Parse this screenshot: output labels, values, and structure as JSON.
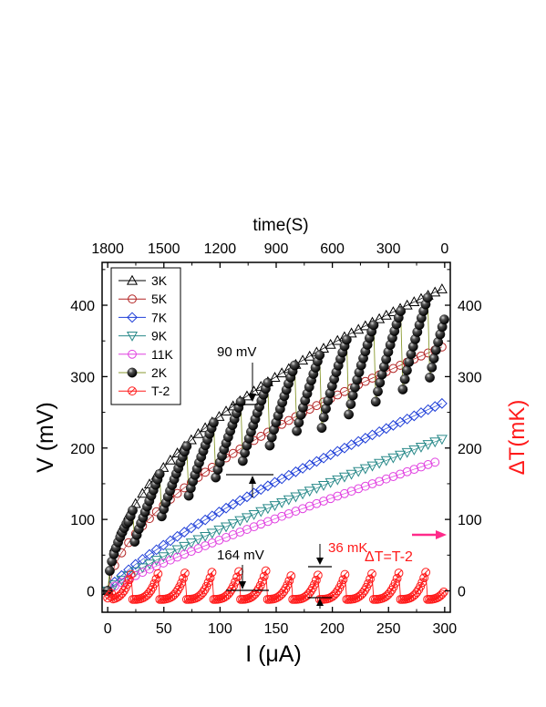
{
  "chart_data": {
    "type": "scatter",
    "xlabel": "I (μA)",
    "ylabel": "V (mV)",
    "ylabel_right": "ΔT(mK)",
    "xlabel_top": "time(S)",
    "xlim": [
      -5,
      305
    ],
    "ylim": [
      -30,
      460
    ],
    "x_ticks": [
      "0",
      "50",
      "100",
      "150",
      "200",
      "250",
      "300"
    ],
    "y_ticks": [
      "0",
      "100",
      "200",
      "300",
      "400"
    ],
    "y_ticks_right": [
      "0",
      "100",
      "200",
      "300",
      "400"
    ],
    "top_ticks": [
      "1800",
      "1500",
      "1200",
      "900",
      "600",
      "300",
      "0"
    ],
    "legend": {
      "position": "top-left",
      "entries": [
        {
          "label": "3K",
          "marker": "triangle-up",
          "color": "#000000"
        },
        {
          "label": "5K",
          "marker": "circle",
          "color": "#b22222"
        },
        {
          "label": "7K",
          "marker": "diamond",
          "color": "#1f3fd8"
        },
        {
          "label": "9K",
          "marker": "triangle-down",
          "color": "#2a8a8a"
        },
        {
          "label": "11K",
          "marker": "circle",
          "color": "#e040e0"
        },
        {
          "label": "2K",
          "marker": "filled-sphere",
          "color": "#000000"
        },
        {
          "label": "T-2",
          "marker": "circle-slash",
          "color": "#ff1a1a"
        }
      ]
    },
    "series": [
      {
        "name": "3K",
        "shape": "power",
        "a": 24.5,
        "b": 0.5,
        "x_step": 6.2,
        "x_max": 298
      },
      {
        "name": "5K",
        "shape": "power",
        "a": 12.2,
        "b": 0.585,
        "x_step": 6.2,
        "x_max": 298
      },
      {
        "name": "7K",
        "shape": "power",
        "a": 2.95,
        "b": 0.788,
        "x_step": 6.2,
        "x_max": 300
      },
      {
        "name": "9K",
        "shape": "power",
        "a": 1.88,
        "b": 0.83,
        "x_step": 6.2,
        "x_max": 300
      },
      {
        "name": "11K",
        "shape": "power",
        "a": 1.33,
        "b": 0.865,
        "x_step": 6.2,
        "x_max": 292
      },
      {
        "name": "2K",
        "shape": "sawtooth",
        "period": 23.8,
        "x_max": 300
      },
      {
        "name": "T-2",
        "shape": "sawtooth-temperature",
        "period": 23.8,
        "x_max": 300
      }
    ],
    "annotations": {
      "mv90": "90 mV",
      "mv164": "164 mV",
      "mk36": "36 mK",
      "dt": "ΔT=T-2"
    }
  },
  "colors": {
    "axis": "#000000",
    "red_axis": "#ff1a1a",
    "arrow": "#ff2a8a",
    "green_line": "#8a9a30"
  }
}
